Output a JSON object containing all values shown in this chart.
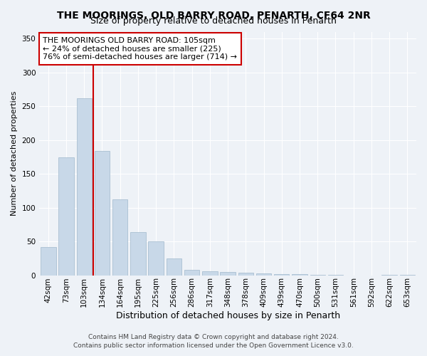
{
  "title": "THE MOORINGS, OLD BARRY ROAD, PENARTH, CF64 2NR",
  "subtitle": "Size of property relative to detached houses in Penarth",
  "xlabel": "Distribution of detached houses by size in Penarth",
  "ylabel": "Number of detached properties",
  "footer1": "Contains HM Land Registry data © Crown copyright and database right 2024.",
  "footer2": "Contains public sector information licensed under the Open Government Licence v3.0.",
  "annotation_line1": "THE MOORINGS OLD BARRY ROAD: 105sqm",
  "annotation_line2": "← 24% of detached houses are smaller (225)",
  "annotation_line3": "76% of semi-detached houses are larger (714) →",
  "bar_labels": [
    "42sqm",
    "73sqm",
    "103sqm",
    "134sqm",
    "164sqm",
    "195sqm",
    "225sqm",
    "256sqm",
    "286sqm",
    "317sqm",
    "348sqm",
    "378sqm",
    "409sqm",
    "439sqm",
    "470sqm",
    "500sqm",
    "531sqm",
    "561sqm",
    "592sqm",
    "622sqm",
    "653sqm"
  ],
  "bar_values": [
    42,
    175,
    262,
    184,
    112,
    64,
    50,
    25,
    8,
    6,
    5,
    4,
    3,
    2,
    2,
    1,
    1,
    0,
    0,
    1,
    1
  ],
  "bar_color": "#c8d8e8",
  "bar_edge_color": "#a0b8cc",
  "vline_color": "#cc0000",
  "vline_x_index": 2,
  "ylim": [
    0,
    360
  ],
  "yticks": [
    0,
    50,
    100,
    150,
    200,
    250,
    300,
    350
  ],
  "background_color": "#eef2f7",
  "annotation_box_edge": "#cc0000",
  "title_fontsize": 10,
  "subtitle_fontsize": 9,
  "xlabel_fontsize": 9,
  "ylabel_fontsize": 8,
  "tick_fontsize": 7.5,
  "annotation_fontsize": 8,
  "footer_fontsize": 6.5
}
